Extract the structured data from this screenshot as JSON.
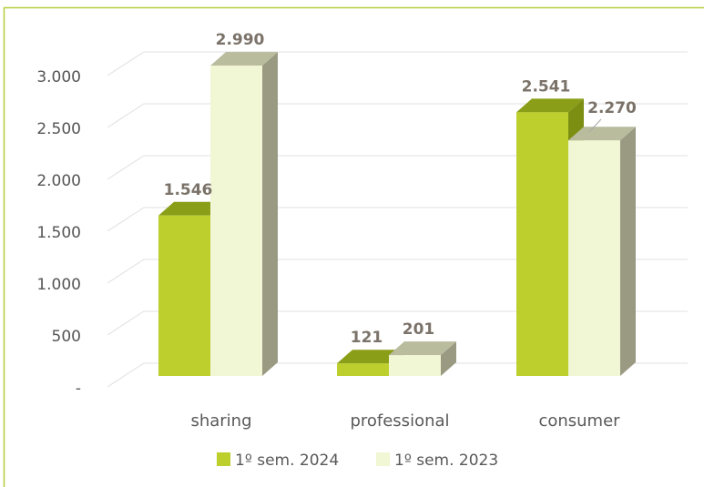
{
  "chart_data": {
    "type": "bar",
    "categories": [
      "sharing",
      "professional",
      "consumer"
    ],
    "series": [
      {
        "name": "1º sem. 2024",
        "values": [
          1546,
          121,
          2541
        ],
        "labels": [
          "1.546",
          "121",
          "2.541"
        ]
      },
      {
        "name": "1º sem. 2023",
        "values": [
          2990,
          201,
          2270
        ],
        "labels": [
          "2.990",
          "201",
          "2.270"
        ]
      }
    ],
    "y_ticks": [
      "-",
      "500",
      "1.000",
      "1.500",
      "2.000",
      "2.500",
      "3.000"
    ],
    "ylim": [
      0,
      3000
    ],
    "grid": true,
    "legend_position": "bottom"
  },
  "colors": {
    "series1_front": "#bccf2c",
    "series1_top": "#8a9e18",
    "series1_side": "#7d8f12",
    "series2_front": "#f1f6d4",
    "series2_top": "#b9bc9d",
    "series2_side": "#9a9a83",
    "grid": "#e0e0e0",
    "border": "#b6d03b"
  }
}
